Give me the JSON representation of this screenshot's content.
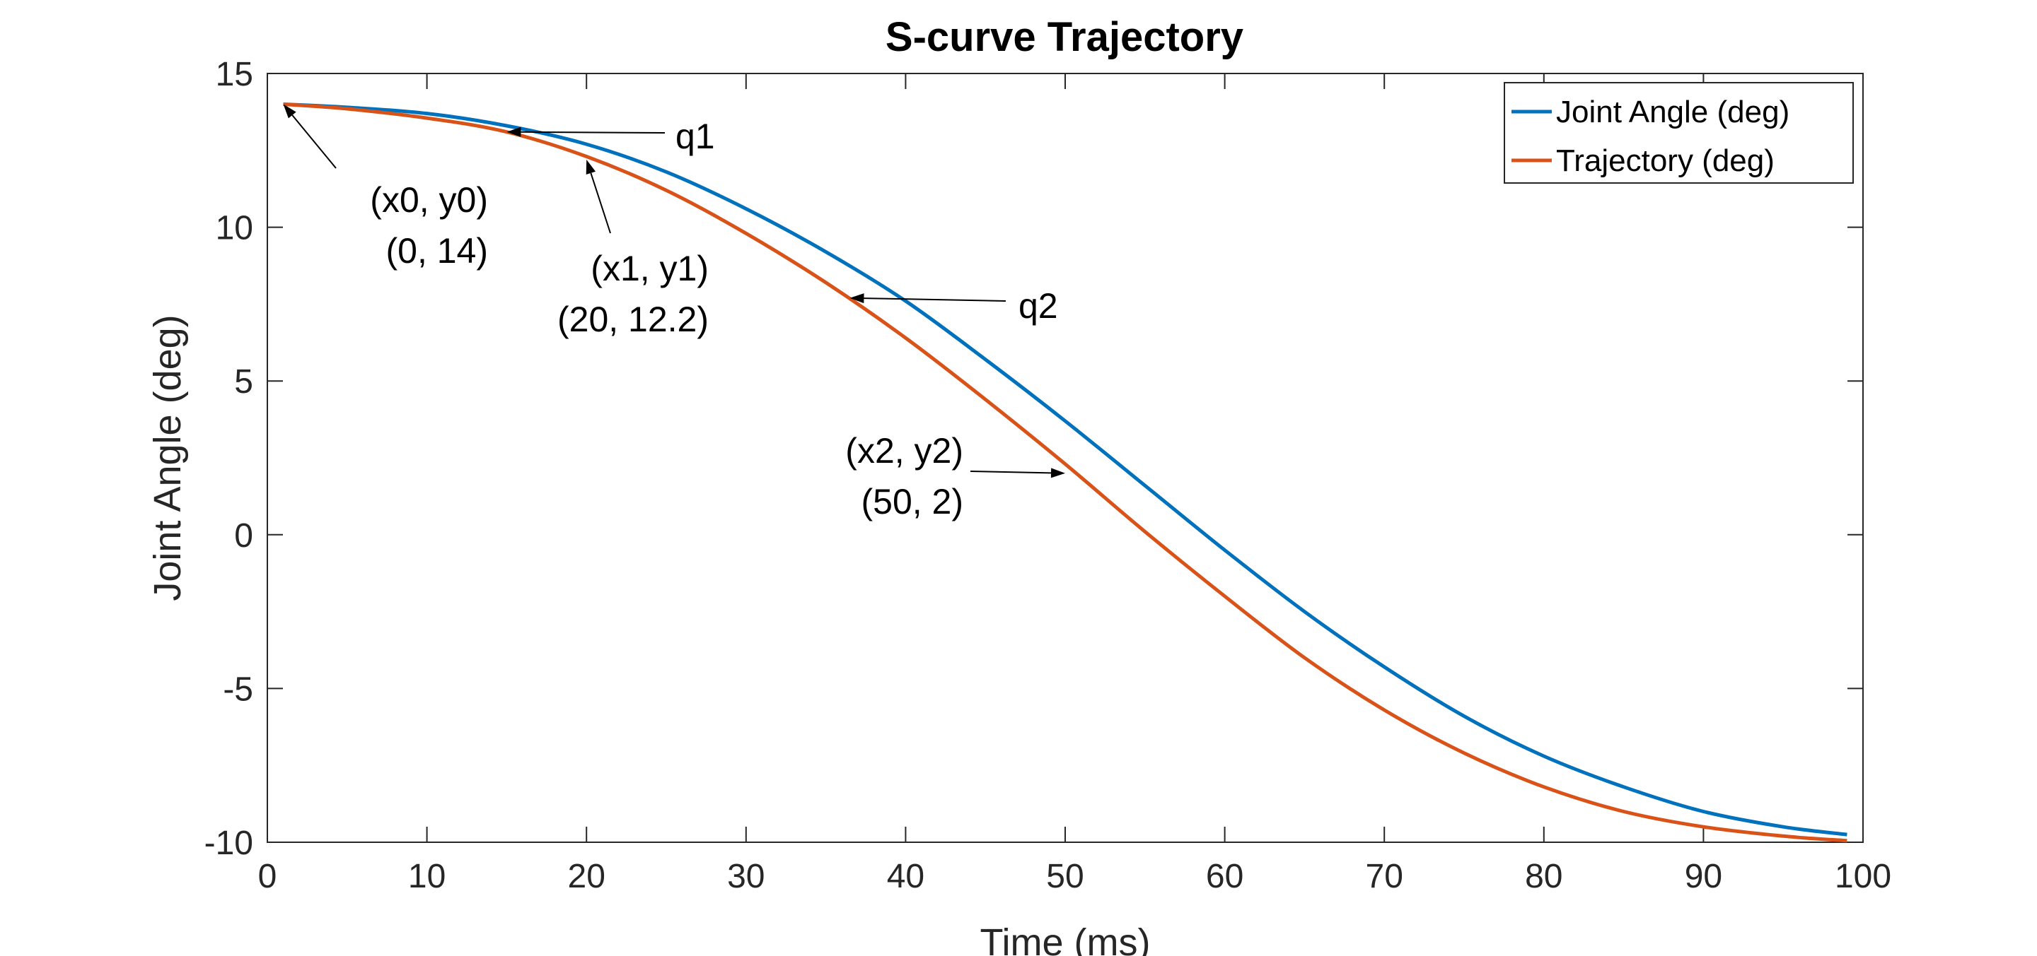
{
  "chart_data": {
    "type": "line",
    "title": "S-curve Trajectory",
    "xlabel": "Time (ms)",
    "ylabel": "Joint Angle (deg)",
    "xlim": [
      0,
      100
    ],
    "ylim": [
      -10,
      15
    ],
    "xticks": [
      0,
      10,
      20,
      30,
      40,
      50,
      60,
      70,
      80,
      90,
      100
    ],
    "yticks": [
      15,
      10,
      5,
      0,
      -5,
      -10
    ],
    "grid": false,
    "legend_position": "top-right",
    "series": [
      {
        "name": "Joint Angle (deg)",
        "color": "#0072BD",
        "x": [
          1,
          5,
          10,
          15,
          20,
          25,
          30,
          35,
          40,
          45,
          50,
          55,
          60,
          65,
          70,
          75,
          80,
          85,
          90,
          95,
          99
        ],
        "y": [
          14.0,
          13.9,
          13.7,
          13.3,
          12.7,
          11.8,
          10.6,
          9.2,
          7.6,
          5.7,
          3.7,
          1.6,
          -0.5,
          -2.5,
          -4.3,
          -5.9,
          -7.2,
          -8.2,
          -9.0,
          -9.5,
          -9.75
        ]
      },
      {
        "name": "Trajectory (deg)",
        "color": "#D95319",
        "x": [
          1,
          5,
          10,
          15,
          20,
          25,
          30,
          35,
          40,
          45,
          50,
          55,
          60,
          65,
          70,
          75,
          80,
          85,
          90,
          95,
          99
        ],
        "y": [
          14.0,
          13.85,
          13.55,
          13.1,
          12.3,
          11.2,
          9.8,
          8.2,
          6.4,
          4.4,
          2.3,
          0.1,
          -2.0,
          -4.0,
          -5.7,
          -7.1,
          -8.2,
          -9.0,
          -9.5,
          -9.8,
          -9.95
        ]
      }
    ],
    "annotations": [
      {
        "lines": [
          "(x0, y0)",
          "(0, 14)"
        ],
        "point": [
          1,
          14
        ]
      },
      {
        "lines": [
          "q1"
        ],
        "point": [
          15,
          13.1
        ]
      },
      {
        "lines": [
          "(x1, y1)",
          "(20, 12.2)"
        ],
        "point": [
          20,
          12.2
        ]
      },
      {
        "lines": [
          "q2"
        ],
        "point": [
          36.5,
          7.7
        ]
      },
      {
        "lines": [
          "(x2, y2)",
          "(50, 2)"
        ],
        "point": [
          50,
          2.0
        ]
      }
    ]
  }
}
